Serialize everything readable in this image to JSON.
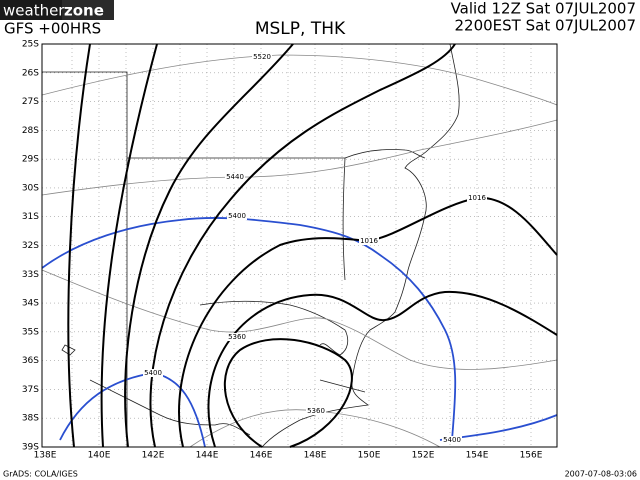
{
  "header": {
    "logo_left": "weather",
    "logo_right": "zone",
    "model": "GFS +00HRS",
    "title": "MSLP, THK",
    "valid": "Valid 12Z Sat 07JUL2007",
    "local": "2200EST Sat 07JUL2007"
  },
  "map": {
    "lat_labels": [
      "25S",
      "26S",
      "27S",
      "28S",
      "29S",
      "30S",
      "31S",
      "32S",
      "33S",
      "34S",
      "35S",
      "36S",
      "37S",
      "38S",
      "39S"
    ],
    "lon_labels": [
      "138E",
      "140E",
      "142E",
      "144E",
      "146E",
      "148E",
      "150E",
      "152E",
      "154E",
      "156E"
    ],
    "contour_labels": [
      "5520",
      "5440",
      "5400",
      "1016",
      "1016",
      "5360",
      "5400",
      "5360",
      "5400"
    ]
  },
  "footer": {
    "left": "GrADS: COLA/IGES",
    "right": "2007-07-08-03:06"
  }
}
